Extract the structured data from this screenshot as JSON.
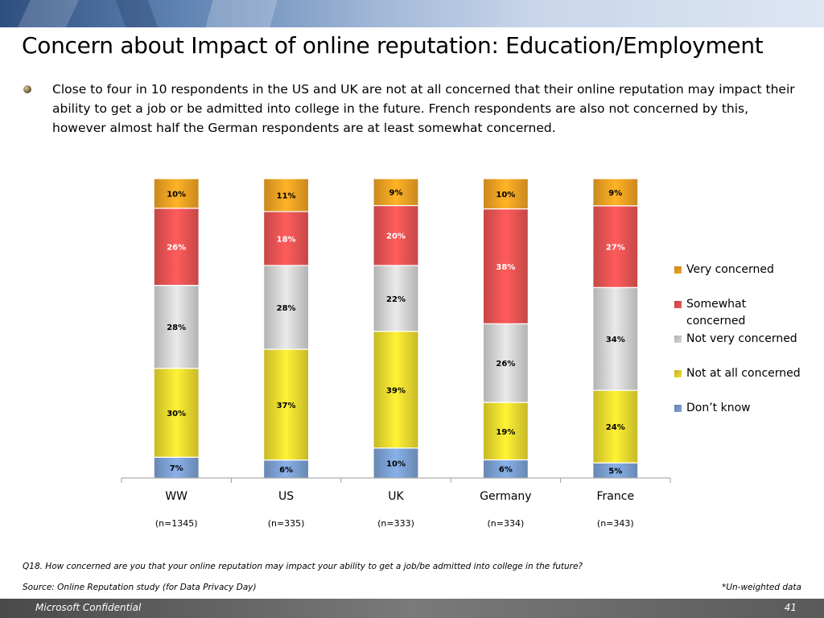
{
  "slide": {
    "title": "Concern about Impact of online reputation: Education/Employment",
    "body": "Close to four in 10 respondents in the US and UK are not at all concerned that their online reputation may impact their ability to get a job or be admitted into college in the future. French respondents are also not concerned by this, however almost half the German respondents are at least somewhat concerned.",
    "question": "Q18. How concerned are you that your online reputation may impact your ability to get a job/be admitted into college in the future?",
    "source": "Source: Online Reputation study (for Data Privacy Day)",
    "note": "*Un-weighted data",
    "footer_left": "Microsoft Confidential",
    "page_number": "41"
  },
  "chart_data": {
    "type": "bar",
    "stacked": true,
    "title": "",
    "xlabel": "",
    "ylabel": "",
    "ylim": [
      0,
      100
    ],
    "categories": [
      "WW",
      "US",
      "UK",
      "Germany",
      "France"
    ],
    "sample_sizes": [
      "(n=1345)",
      "(n=335)",
      "(n=333)",
      "(n=334)",
      "(n=343)"
    ],
    "legend_position": "right",
    "series": [
      {
        "name": "Don’t know",
        "color": "#7fa4d8",
        "values": [
          7,
          6,
          10,
          6,
          5
        ]
      },
      {
        "name": "Not at all concerned",
        "color": "#f2e030",
        "values": [
          30,
          37,
          39,
          19,
          24
        ]
      },
      {
        "name": "Not very concerned",
        "color": "#d9d9d9",
        "values": [
          28,
          28,
          22,
          26,
          34
        ]
      },
      {
        "name": "Somewhat concerned",
        "color": "#f05555",
        "values": [
          26,
          18,
          20,
          38,
          27
        ]
      },
      {
        "name": "Very concerned",
        "color": "#f5a623",
        "values": [
          10,
          11,
          9,
          10,
          9
        ]
      }
    ]
  }
}
